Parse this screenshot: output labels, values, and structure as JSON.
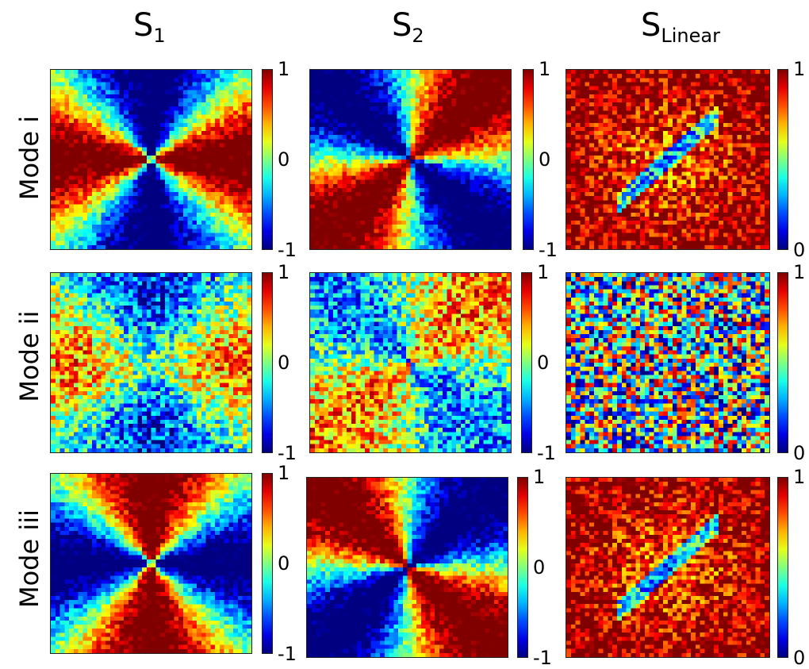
{
  "figure": {
    "column_titles": [
      {
        "base": "S",
        "sub": "1"
      },
      {
        "base": "S",
        "sub": "2"
      },
      {
        "base": "S",
        "sub": "Linear"
      }
    ],
    "row_labels": [
      "Mode i",
      "Mode ii",
      "Mode iii"
    ]
  },
  "chart_data": [
    {
      "type": "heatmap",
      "column": "S1",
      "row": "Mode i",
      "pattern": "cross_diag_pos",
      "colorbar": {
        "min": -1,
        "max": 1,
        "ticks": [
          "1",
          "0",
          "-1"
        ]
      },
      "colormap": "jet"
    },
    {
      "type": "heatmap",
      "column": "S2",
      "row": "Mode i",
      "pattern": "cross_offdiag_pos",
      "colorbar": {
        "min": -1,
        "max": 1,
        "ticks": [
          "1",
          "0",
          "-1"
        ]
      },
      "colormap": "jet"
    },
    {
      "type": "heatmap",
      "column": "SLinear",
      "row": "Mode i",
      "pattern": "high_with_diag_dip",
      "colorbar": {
        "min": 0,
        "max": 1,
        "ticks": [
          "1",
          "0"
        ]
      },
      "colormap": "jet"
    },
    {
      "type": "heatmap",
      "column": "S1",
      "row": "Mode ii",
      "pattern": "weak_bands",
      "colorbar": {
        "min": -1,
        "max": 1,
        "ticks": [
          "1",
          "0",
          "-1"
        ]
      },
      "colormap": "jet"
    },
    {
      "type": "heatmap",
      "column": "S2",
      "row": "Mode ii",
      "pattern": "weak_cross",
      "colorbar": {
        "min": -1,
        "max": 1,
        "ticks": [
          "1",
          "0",
          "-1"
        ]
      },
      "colormap": "jet"
    },
    {
      "type": "heatmap",
      "column": "SLinear",
      "row": "Mode ii",
      "pattern": "noisy_mid",
      "colorbar": {
        "min": 0,
        "max": 1,
        "ticks": [
          "1",
          "0"
        ]
      },
      "colormap": "jet"
    },
    {
      "type": "heatmap",
      "column": "S1",
      "row": "Mode iii",
      "pattern": "cross_offdiag_pos_vertical",
      "colorbar": {
        "min": -1,
        "max": 1,
        "ticks": [
          "1",
          "0",
          "-1"
        ]
      },
      "colormap": "jet"
    },
    {
      "type": "heatmap",
      "column": "S2",
      "row": "Mode iii",
      "pattern": "cross_diag_neg",
      "colorbar": {
        "min": -1,
        "max": 1,
        "ticks": [
          "1",
          "0",
          "-1"
        ]
      },
      "colormap": "jet"
    },
    {
      "type": "heatmap",
      "column": "SLinear",
      "row": "Mode iii",
      "pattern": "high_with_diag_dip",
      "colorbar": {
        "min": 0,
        "max": 1,
        "ticks": [
          "1",
          "0"
        ]
      },
      "colormap": "jet"
    }
  ]
}
